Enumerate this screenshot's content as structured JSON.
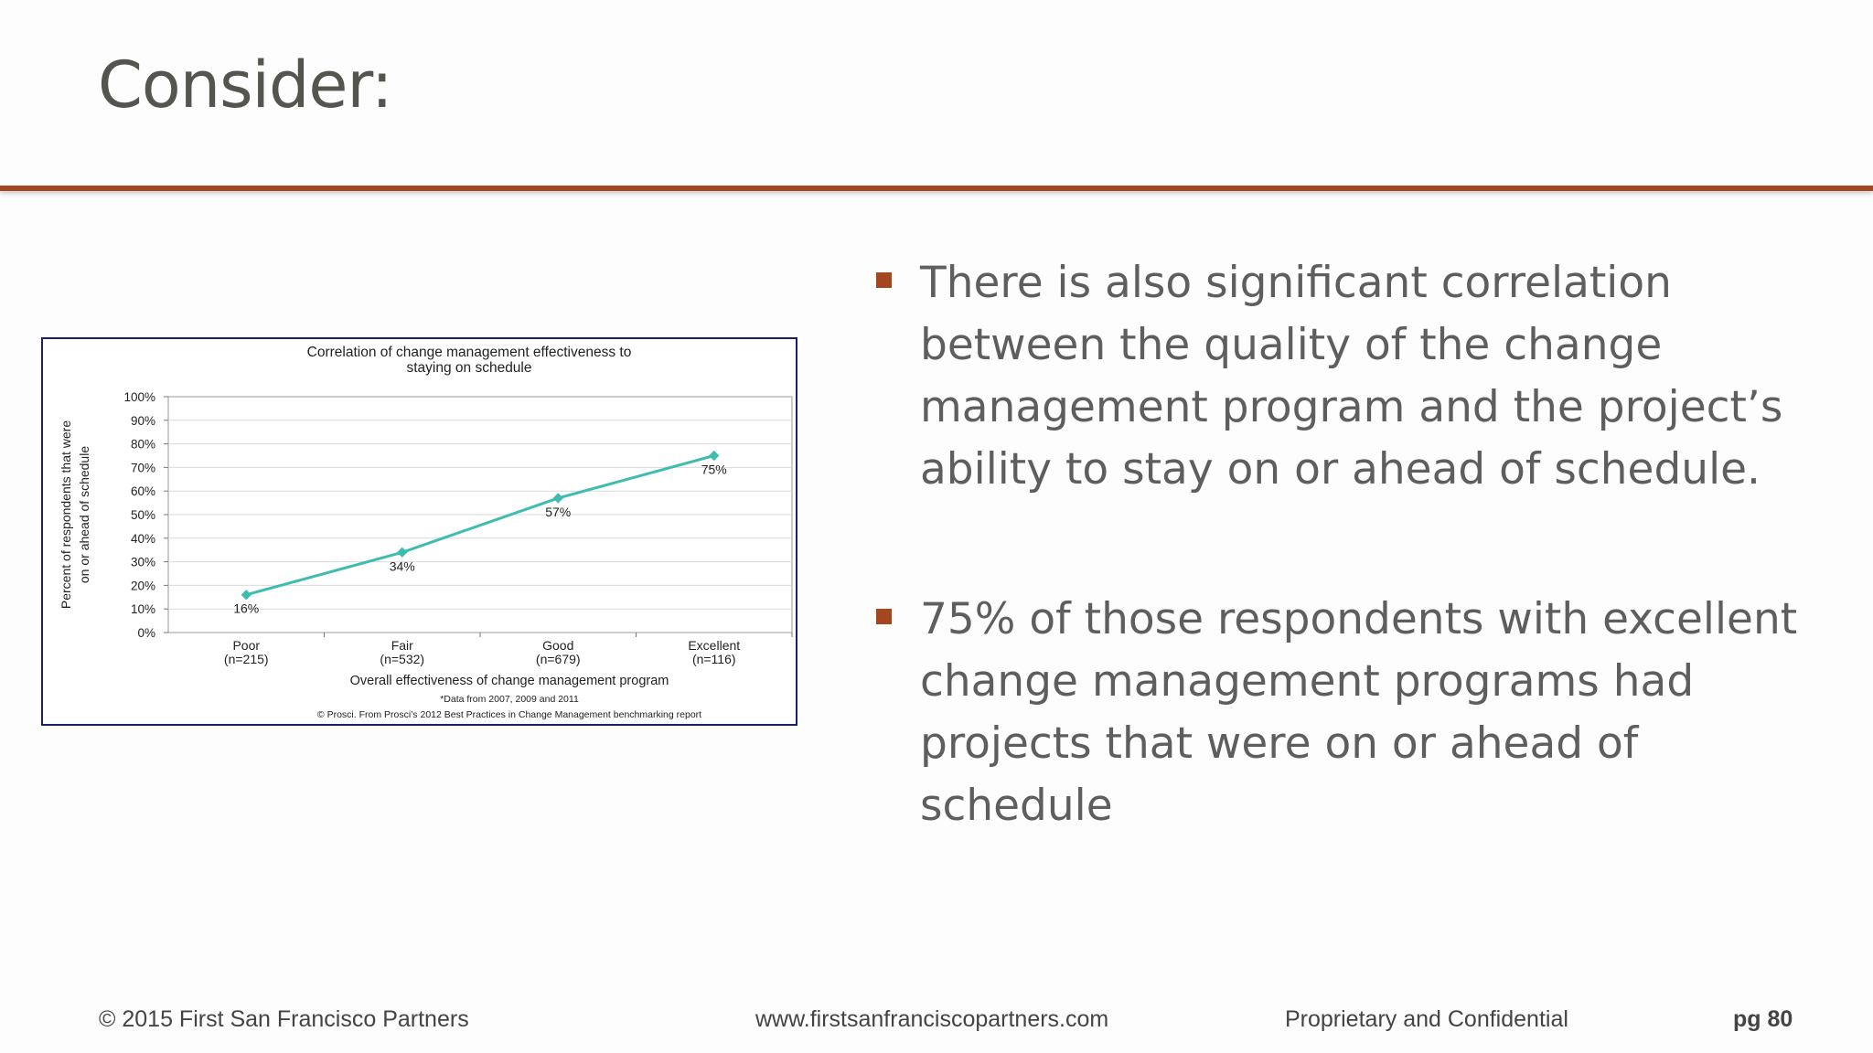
{
  "slide": {
    "title": "Consider:",
    "accent_color": "#a3471e"
  },
  "bullets": [
    {
      "text": "There is also significant correlation between the quality of the change management program and the project’s ability to stay on or ahead of schedule."
    },
    {
      "text": "75% of those respondents with excellent change management programs had projects that were on or ahead of schedule"
    }
  ],
  "footer": {
    "copyright": "© 2015 First San Francisco Partners",
    "url": "www.firstsanfranciscopartners.com",
    "confidential": "Proprietary and Confidential",
    "page": "pg 80"
  },
  "chart_data": {
    "type": "line",
    "title_lines": [
      "Correlation of change management effectiveness to",
      "staying on schedule"
    ],
    "ylabel_lines": [
      "Percent of respondents that were",
      "on or ahead of schedule"
    ],
    "xlabel": "Overall effectiveness of change management program",
    "categories": [
      "Poor",
      "Fair",
      "Good",
      "Excellent"
    ],
    "category_counts": [
      "(n=215)",
      "(n=532)",
      "(n=679)",
      "(n=116)"
    ],
    "values": [
      16,
      34,
      57,
      75
    ],
    "data_labels": [
      "16%",
      "34%",
      "57%",
      "75%"
    ],
    "ylim": [
      0,
      100
    ],
    "yticks": [
      "0%",
      "10%",
      "20%",
      "30%",
      "40%",
      "50%",
      "60%",
      "70%",
      "80%",
      "90%",
      "100%"
    ],
    "notes": [
      "*Data from 2007, 2009 and 2011",
      "© Prosci. From Prosci’s 2012 Best Practices in Change Management benchmarking report"
    ],
    "grid": true,
    "line_color": "#3dbcb0"
  }
}
